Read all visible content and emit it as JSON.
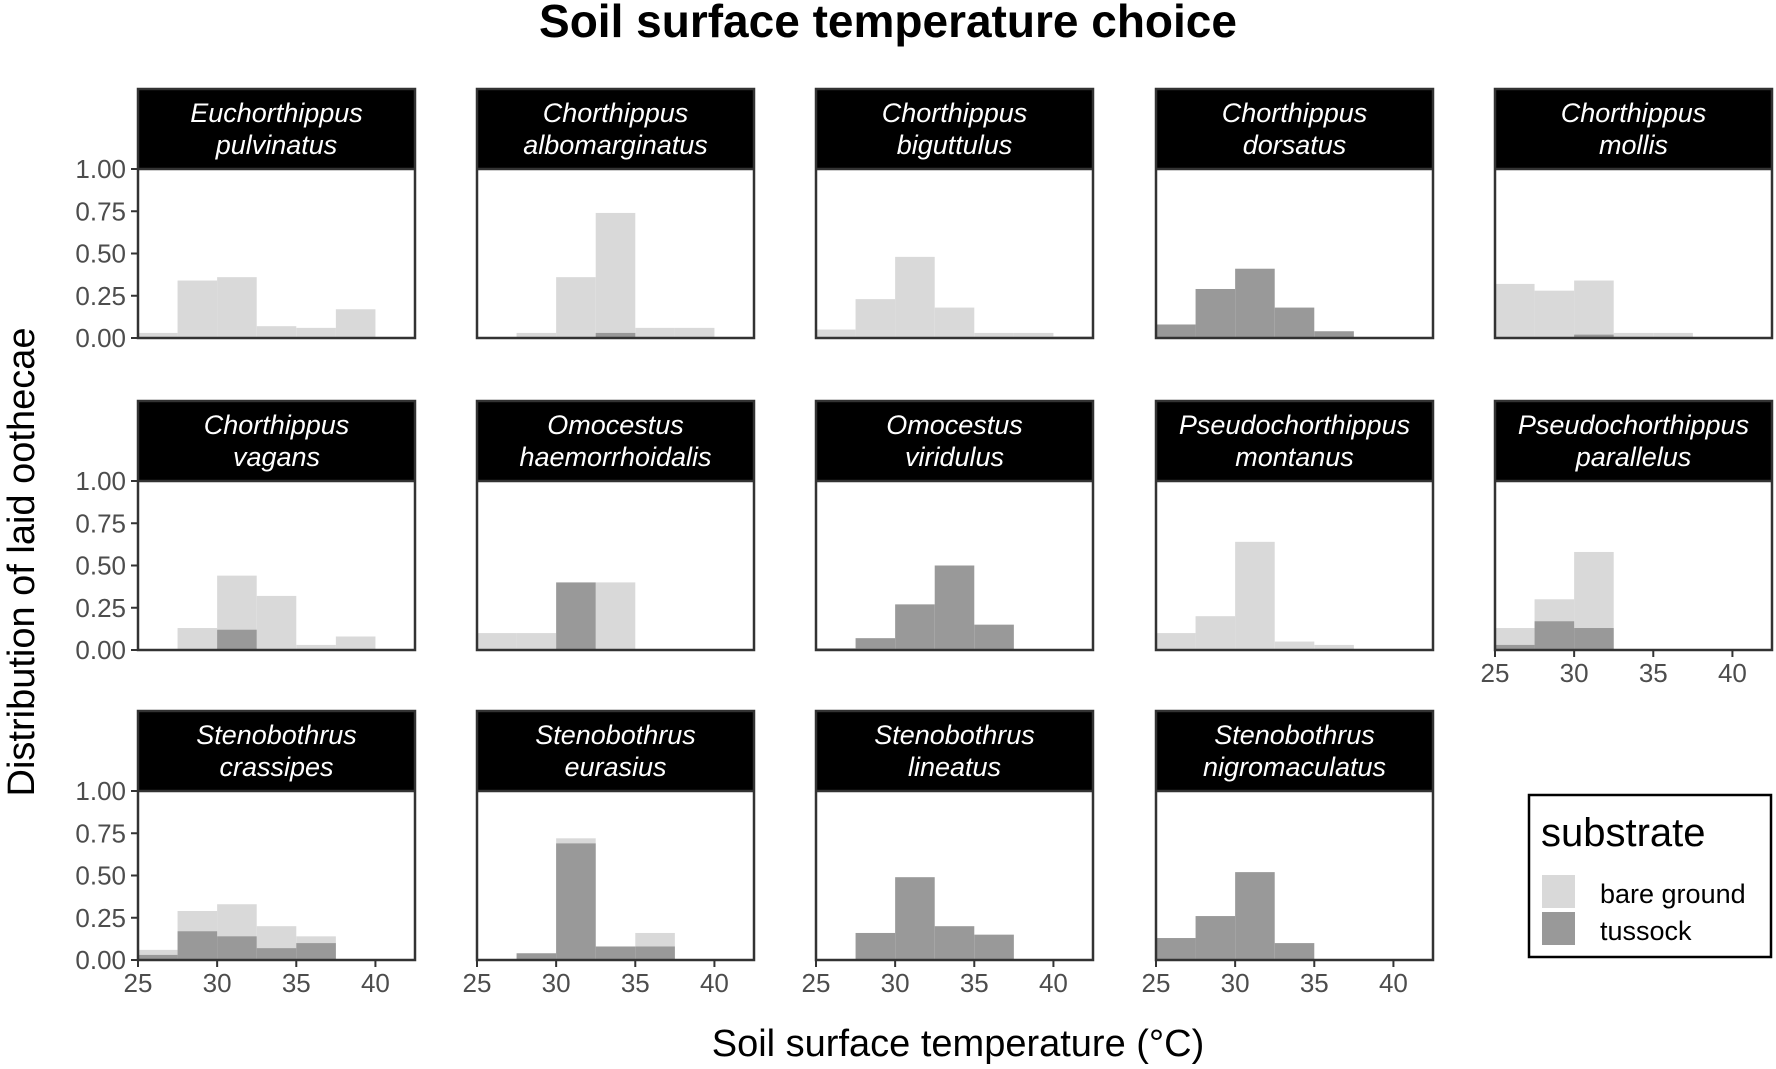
{
  "chart_data": {
    "type": "bar",
    "title": "Soil surface temperature choice",
    "xlabel": "Soil surface temperature (°C)",
    "ylabel": "Distribution of laid oothecae",
    "xlim": [
      25,
      42.5
    ],
    "ylim": [
      0,
      1
    ],
    "bin_edges": [
      25,
      27.5,
      30,
      32.5,
      35,
      37.5,
      40,
      42.5
    ],
    "x_ticks": [
      "25",
      "30",
      "35",
      "40"
    ],
    "y_ticks": [
      "0.00",
      "0.25",
      "0.50",
      "0.75",
      "1.00"
    ],
    "legend": {
      "title": "substrate",
      "position": "bottom-right",
      "items": [
        {
          "label": "bare ground",
          "color": "#d9d9d9"
        },
        {
          "label": "tussock",
          "color": "#999999"
        }
      ]
    },
    "panels": [
      {
        "name_line1": "Euchorthippus",
        "name_line2": "pulvinatus",
        "series": [
          {
            "name": "bare ground",
            "values": [
              0.03,
              0.34,
              0.36,
              0.07,
              0.06,
              0.17,
              0
            ]
          },
          {
            "name": "tussock",
            "values": [
              0,
              0,
              0,
              0,
              0,
              0,
              0
            ]
          }
        ]
      },
      {
        "name_line1": "Chorthippus",
        "name_line2": "albomarginatus",
        "series": [
          {
            "name": "bare ground",
            "values": [
              0,
              0.03,
              0.36,
              0.74,
              0.06,
              0.06,
              0
            ]
          },
          {
            "name": "tussock",
            "values": [
              0,
              0,
              0,
              0.03,
              0,
              0,
              0
            ]
          }
        ]
      },
      {
        "name_line1": "Chorthippus",
        "name_line2": "biguttulus",
        "series": [
          {
            "name": "bare ground",
            "values": [
              0.05,
              0.23,
              0.48,
              0.18,
              0.03,
              0.03,
              0.01
            ]
          },
          {
            "name": "tussock",
            "values": [
              0,
              0,
              0,
              0,
              0,
              0,
              0
            ]
          }
        ]
      },
      {
        "name_line1": "Chorthippus",
        "name_line2": "dorsatus",
        "series": [
          {
            "name": "bare ground",
            "values": [
              0,
              0,
              0,
              0,
              0,
              0,
              0
            ]
          },
          {
            "name": "tussock",
            "values": [
              0.08,
              0.29,
              0.41,
              0.18,
              0.04,
              0,
              0
            ]
          }
        ]
      },
      {
        "name_line1": "Chorthippus",
        "name_line2": "mollis",
        "series": [
          {
            "name": "bare ground",
            "values": [
              0.32,
              0.28,
              0.34,
              0.03,
              0.03,
              0,
              0
            ]
          },
          {
            "name": "tussock",
            "values": [
              0,
              0,
              0.02,
              0,
              0,
              0,
              0
            ]
          }
        ]
      },
      {
        "name_line1": "Chorthippus",
        "name_line2": "vagans",
        "series": [
          {
            "name": "bare ground",
            "values": [
              0,
              0.13,
              0.44,
              0.32,
              0.03,
              0.08,
              0
            ]
          },
          {
            "name": "tussock",
            "values": [
              0,
              0,
              0.12,
              0,
              0,
              0,
              0
            ]
          }
        ]
      },
      {
        "name_line1": "Omocestus",
        "name_line2": "haemorrhoidalis",
        "series": [
          {
            "name": "bare ground",
            "values": [
              0.1,
              0.1,
              0,
              0.4,
              0,
              0,
              0
            ]
          },
          {
            "name": "tussock",
            "values": [
              0,
              0,
              0.4,
              0,
              0,
              0,
              0
            ]
          }
        ]
      },
      {
        "name_line1": "Omocestus",
        "name_line2": "viridulus",
        "series": [
          {
            "name": "bare ground",
            "values": [
              0,
              0,
              0,
              0,
              0,
              0,
              0
            ]
          },
          {
            "name": "tussock",
            "values": [
              0.01,
              0.07,
              0.27,
              0.5,
              0.15,
              0,
              0
            ]
          }
        ]
      },
      {
        "name_line1": "Pseudochorthippus",
        "name_line2": "montanus",
        "series": [
          {
            "name": "bare ground",
            "values": [
              0.1,
              0.2,
              0.64,
              0.05,
              0.03,
              0,
              0
            ]
          },
          {
            "name": "tussock",
            "values": [
              0,
              0,
              0,
              0,
              0,
              0,
              0
            ]
          }
        ]
      },
      {
        "name_line1": "Pseudochorthippus",
        "name_line2": "parallelus",
        "series": [
          {
            "name": "bare ground",
            "values": [
              0.13,
              0.3,
              0.58,
              0,
              0,
              0,
              0
            ]
          },
          {
            "name": "tussock",
            "values": [
              0.03,
              0.17,
              0.13,
              0,
              0,
              0,
              0
            ]
          }
        ]
      },
      {
        "name_line1": "Stenobothrus",
        "name_line2": "crassipes",
        "series": [
          {
            "name": "bare ground",
            "values": [
              0.06,
              0.29,
              0.33,
              0.2,
              0.14,
              0,
              0
            ]
          },
          {
            "name": "tussock",
            "values": [
              0.03,
              0.17,
              0.14,
              0.07,
              0.1,
              0,
              0
            ]
          }
        ]
      },
      {
        "name_line1": "Stenobothrus",
        "name_line2": "eurasius",
        "series": [
          {
            "name": "bare ground",
            "values": [
              0,
              0,
              0.72,
              0,
              0.16,
              0,
              0
            ]
          },
          {
            "name": "tussock",
            "values": [
              0,
              0.04,
              0.69,
              0.08,
              0.08,
              0,
              0
            ]
          }
        ]
      },
      {
        "name_line1": "Stenobothrus",
        "name_line2": "lineatus",
        "series": [
          {
            "name": "bare ground",
            "values": [
              0,
              0,
              0,
              0,
              0,
              0,
              0
            ]
          },
          {
            "name": "tussock",
            "values": [
              0,
              0.16,
              0.49,
              0.2,
              0.15,
              0,
              0
            ]
          }
        ]
      },
      {
        "name_line1": "Stenobothrus",
        "name_line2": "nigromaculatus",
        "series": [
          {
            "name": "bare ground",
            "values": [
              0,
              0,
              0,
              0,
              0,
              0,
              0
            ]
          },
          {
            "name": "tussock",
            "values": [
              0.13,
              0.26,
              0.52,
              0.1,
              0,
              0,
              0
            ]
          }
        ]
      }
    ]
  }
}
